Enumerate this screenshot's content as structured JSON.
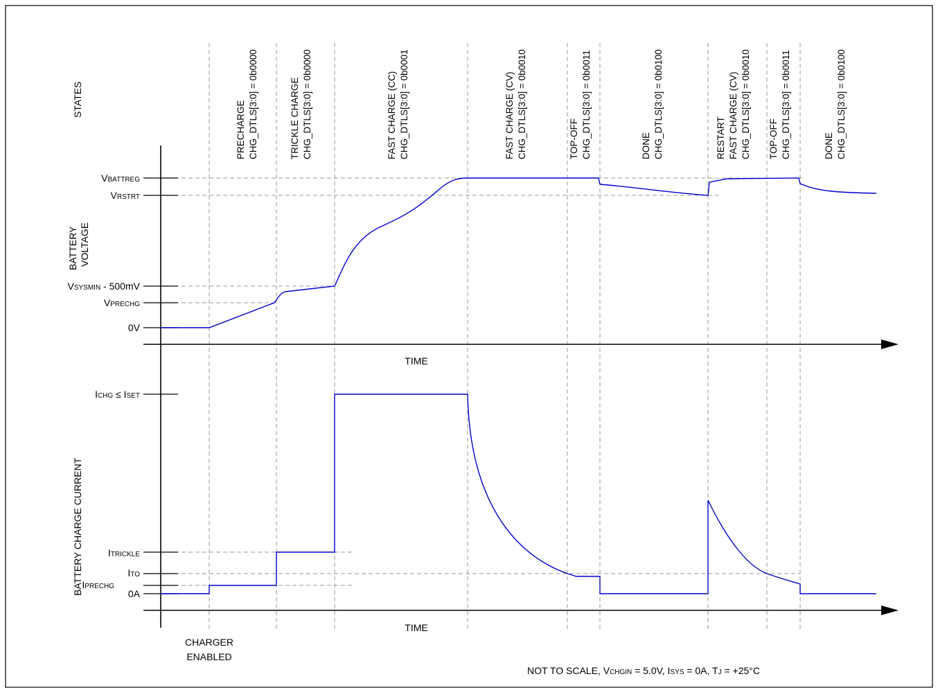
{
  "states_heading": "STATES",
  "states": [
    {
      "line1": "PRECHARGE",
      "line2": "CHG_DTLS[3:0] = 0b0000"
    },
    {
      "line1": "TRICKLE CHARGE",
      "line2": "CHG_DTLS[3:0] = 0b0000"
    },
    {
      "line1": "FAST CHARGE (CC)",
      "line2": "CHG_DTLS[3:0] = 0b0001"
    },
    {
      "line1": "FAST CHARGE (CV)",
      "line2": "CHG_DTLS[3:0] = 0b0010"
    },
    {
      "line1": "TOP-OFF",
      "line2": "CHG_DTLS[3:0] = 0b0011"
    },
    {
      "line1": "DONE",
      "line2": "CHG_DTLS[3:0] = 0b0100"
    },
    {
      "line0": "RESTART",
      "line1": "FAST CHARGE (CV)",
      "line2": "CHG_DTLS[3:0] = 0b0010"
    },
    {
      "line1": "TOP-OFF",
      "line2": "CHG_DTLS[3:0] = 0b0011"
    },
    {
      "line1": "DONE",
      "line2": "CHG_DTLS[3:0] = 0b0100"
    }
  ],
  "voltage_axis": {
    "label_line1": "BATTERY",
    "label_line2": "VOLTAGE",
    "time_label": "TIME",
    "levels": {
      "vbattreg": {
        "main": "V",
        "sub": "BATTREG"
      },
      "vrstrt": {
        "main": "V",
        "sub": "RSTRT"
      },
      "vsysmin": {
        "main": "V",
        "sub": "SYSMIN",
        "suffix": " - 500mV"
      },
      "vprechg": {
        "main": "V",
        "sub": "PRECHG"
      },
      "zero": "0V"
    }
  },
  "current_axis": {
    "label": "BATTERY CHARGE CURRENT",
    "time_label": "TIME",
    "levels": {
      "ichg": {
        "main": "I",
        "sub": "CHG",
        "mid": " ≤ I",
        "sub2": "SET"
      },
      "itrickle": {
        "main": "I",
        "sub": "TRICKLE"
      },
      "ito": {
        "main": "I",
        "sub": "TO"
      },
      "iprechg": {
        "main": "I",
        "sub": "PRECHG"
      },
      "zero": "0A"
    }
  },
  "charger_enabled": {
    "line1": "CHARGER",
    "line2": "ENABLED"
  },
  "footnote": {
    "prefix": "NOT TO SCALE, V",
    "vsub": "CHGIN",
    "v_val": " = 5.0V, I",
    "isub": "SYS",
    "i_val": " = 0A, T",
    "tsub": "J",
    "t_val": " = +25°C"
  },
  "colors": {
    "trace": "#0000cc",
    "guide": "#9a9a9a",
    "frame": "#000000"
  }
}
